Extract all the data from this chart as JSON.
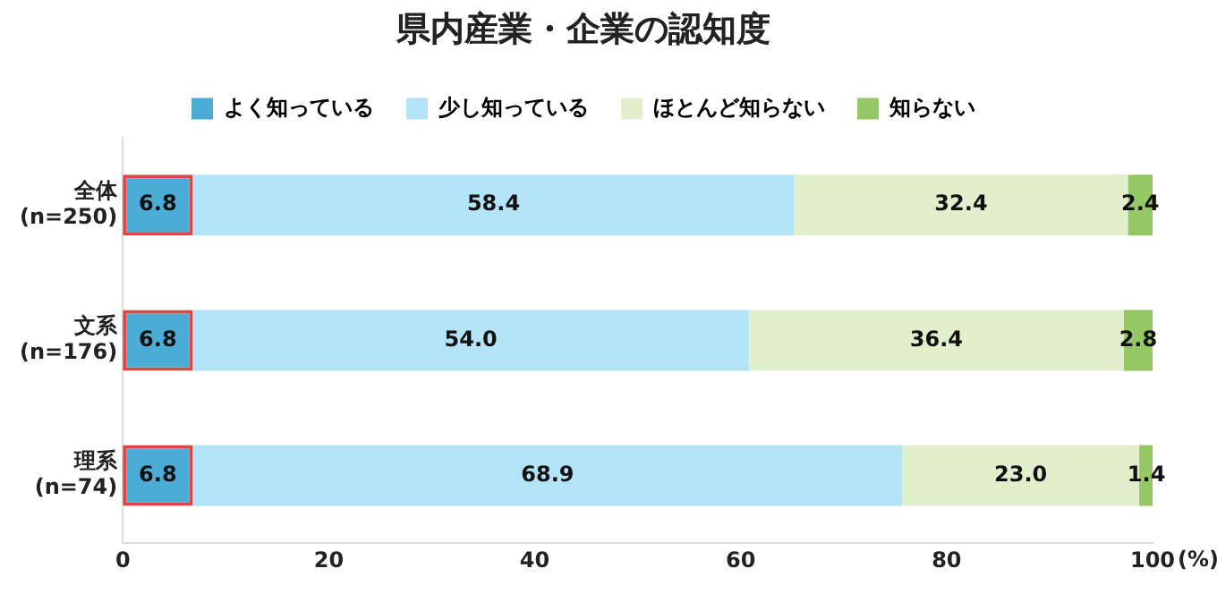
{
  "chart_data": {
    "type": "bar",
    "orientation": "horizontal",
    "stacked": true,
    "title": "県内産業・企業の認知度",
    "xlabel": "(%)",
    "categories": [
      "全体 (n=250)",
      "文系 (n=176)",
      "理系 (n=74)"
    ],
    "series": [
      {
        "name": "よく知っている",
        "color": "#4bacd6",
        "values": [
          6.8,
          6.8,
          6.8
        ],
        "value_labels": [
          "6.8",
          "6.8",
          "6.8"
        ]
      },
      {
        "name": "少し知っている",
        "color": "#b3e3f7",
        "values": [
          58.4,
          54.0,
          68.9
        ],
        "value_labels": [
          "58.4",
          "54.0",
          "68.9"
        ]
      },
      {
        "name": "ほとんど知らない",
        "color": "#e2efcc",
        "values": [
          32.4,
          36.4,
          23.0
        ],
        "value_labels": [
          "32.4",
          "36.4",
          "23.0"
        ]
      },
      {
        "name": "知らない",
        "color": "#94c864",
        "values": [
          2.4,
          2.8,
          1.4
        ],
        "value_labels": [
          "2.4",
          "2.8",
          "1.4"
        ]
      }
    ],
    "xlim": [
      0,
      100
    ],
    "xticks": [
      0,
      20,
      40,
      60,
      80,
      100
    ],
    "grid": false,
    "legend": "top"
  }
}
